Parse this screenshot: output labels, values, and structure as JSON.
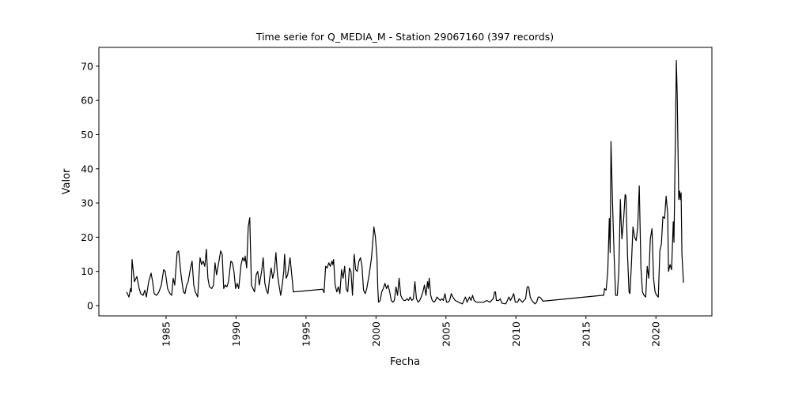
{
  "chart_data": {
    "type": "line",
    "title": "Time serie for Q_MEDIA_M - Station 29067160 (397 records)",
    "xlabel": "Fecha",
    "ylabel": "Valor",
    "color": "#000000",
    "x": [
      1982.18,
      1982.35,
      1982.46,
      1982.52,
      1982.57,
      1982.74,
      1982.91,
      1983.08,
      1983.19,
      1983.36,
      1983.48,
      1983.59,
      1983.76,
      1983.93,
      1984.04,
      1984.15,
      1984.32,
      1984.49,
      1984.66,
      1984.83,
      1984.94,
      1985.11,
      1985.28,
      1985.4,
      1985.51,
      1985.62,
      1985.79,
      1985.9,
      1986.07,
      1986.24,
      1986.35,
      1986.47,
      1986.58,
      1986.75,
      1986.86,
      1986.98,
      1987.09,
      1987.26,
      1987.43,
      1987.54,
      1987.65,
      1987.77,
      1987.88,
      1987.99,
      1988.1,
      1988.27,
      1988.39,
      1988.5,
      1988.61,
      1988.78,
      1988.9,
      1989.01,
      1989.12,
      1989.23,
      1989.35,
      1989.46,
      1989.63,
      1989.74,
      1989.85,
      1989.97,
      1990.08,
      1990.19,
      1990.36,
      1990.48,
      1990.59,
      1990.65,
      1990.76,
      1990.87,
      1990.98,
      1991.1,
      1991.21,
      1991.32,
      1991.44,
      1991.55,
      1991.66,
      1991.83,
      1991.94,
      1992.06,
      1992.17,
      1992.28,
      1992.4,
      1992.51,
      1992.62,
      1992.73,
      1992.85,
      1992.96,
      1993.07,
      1993.19,
      1993.3,
      1993.41,
      1993.47,
      1993.58,
      1993.69,
      1993.86,
      1994.03,
      1994.09,
      1996.18,
      1996.29,
      1996.4,
      1996.51,
      1996.63,
      1996.74,
      1996.85,
      1996.91,
      1996.97,
      1997.08,
      1997.2,
      1997.31,
      1997.42,
      1997.54,
      1997.65,
      1997.76,
      1997.87,
      1997.98,
      1998.1,
      1998.21,
      1998.32,
      1998.44,
      1998.55,
      1998.66,
      1998.78,
      1998.89,
      1999.0,
      1999.11,
      1999.23,
      1999.34,
      1999.51,
      1999.68,
      1999.85,
      1999.96,
      2000.07,
      2000.13,
      2000.18,
      2000.3,
      2000.41,
      2000.52,
      2000.64,
      2000.75,
      2000.86,
      2000.98,
      2001.09,
      2001.2,
      2001.31,
      2001.43,
      2001.54,
      2001.65,
      2001.77,
      2001.88,
      2001.99,
      2002.1,
      2002.22,
      2002.33,
      2002.44,
      2002.56,
      2002.67,
      2002.78,
      2002.89,
      2003.01,
      2003.12,
      2003.23,
      2003.35,
      2003.46,
      2003.57,
      2003.68,
      2003.74,
      2003.8,
      2003.91,
      2004.02,
      2004.14,
      2004.25,
      2004.36,
      2004.47,
      2004.59,
      2004.7,
      2004.81,
      2004.93,
      2005.04,
      2005.15,
      2005.26,
      2005.38,
      2005.49,
      2005.66,
      2005.89,
      2006.17,
      2006.39,
      2006.51,
      2006.68,
      2006.79,
      2006.9,
      2007.01,
      2007.18,
      2007.41,
      2007.69,
      2007.92,
      2008.14,
      2008.37,
      2008.48,
      2008.54,
      2008.6,
      2008.77,
      2008.88,
      2008.99,
      2009.27,
      2009.5,
      2009.61,
      2009.73,
      2009.84,
      2009.95,
      2010.12,
      2010.23,
      2010.35,
      2010.46,
      2010.57,
      2010.69,
      2010.8,
      2010.91,
      2011.02,
      2011.14,
      2011.25,
      2011.36,
      2011.48,
      2011.59,
      2011.7,
      2011.81,
      2011.93,
      2016.16,
      2016.27,
      2016.33,
      2016.44,
      2016.56,
      2016.67,
      2016.73,
      2016.79,
      2016.9,
      2017.01,
      2017.12,
      2017.24,
      2017.35,
      2017.46,
      2017.52,
      2017.57,
      2017.69,
      2017.8,
      2017.86,
      2017.97,
      2018.08,
      2018.14,
      2018.25,
      2018.36,
      2018.48,
      2018.59,
      2018.7,
      2018.81,
      2018.93,
      2019.04,
      2019.15,
      2019.27,
      2019.38,
      2019.49,
      2019.6,
      2019.72,
      2019.83,
      2019.94,
      2020.05,
      2020.17,
      2020.28,
      2020.39,
      2020.5,
      2020.62,
      2020.73,
      2020.84,
      2020.9,
      2021.01,
      2021.12,
      2021.24,
      2021.29,
      2021.41,
      2021.46,
      2021.52,
      2021.58,
      2021.63,
      2021.69,
      2021.75,
      2021.8,
      2021.86,
      2021.97
    ],
    "values": [
      4,
      2.5,
      5,
      4,
      13.5,
      7,
      8.5,
      5,
      3.5,
      3,
      4.5,
      2.5,
      7,
      9.5,
      7,
      3.5,
      3,
      4,
      6,
      10.5,
      10,
      5,
      3.5,
      3,
      8,
      6,
      15.5,
      16,
      9,
      4,
      3.5,
      6,
      7,
      11,
      13,
      6,
      4,
      2.5,
      14,
      12,
      13,
      11.5,
      16.5,
      8,
      5.5,
      5,
      6,
      12.5,
      9,
      13,
      16,
      15,
      5,
      6,
      5.5,
      7,
      13,
      12.5,
      10,
      5,
      6.5,
      5,
      12,
      14,
      13,
      14.5,
      11,
      23,
      25.7,
      6,
      5,
      4,
      9,
      10,
      6,
      10,
      14,
      6.5,
      4.5,
      3.5,
      8,
      11,
      8,
      10,
      15.5,
      9,
      6,
      3,
      6,
      10,
      15,
      8,
      9,
      14,
      7,
      4,
      4.8,
      3.8,
      11.5,
      11,
      12.5,
      11.5,
      13,
      12,
      13.5,
      6,
      4,
      5.5,
      3.5,
      10.5,
      8,
      11.5,
      5,
      4,
      11,
      10,
      3,
      15,
      10.5,
      10,
      13,
      14,
      11.5,
      4.5,
      3.5,
      5,
      9,
      14,
      23,
      20,
      14,
      5,
      1,
      1.5,
      4,
      5,
      6.5,
      5,
      6,
      4,
      1.5,
      1,
      1.5,
      5.5,
      3,
      8,
      3,
      2,
      1.5,
      1.5,
      2,
      1.5,
      2.5,
      1.5,
      2,
      7,
      2,
      1,
      1.5,
      2.5,
      4,
      6,
      3,
      7,
      5,
      8,
      3,
      1.5,
      1,
      1.5,
      2.5,
      2,
      1.5,
      2,
      1.5,
      3.5,
      1,
      1,
      1.5,
      3.5,
      2.5,
      1.5,
      1,
      0.5,
      2.5,
      1,
      2.5,
      1.5,
      3,
      1.5,
      1,
      1,
      1,
      1.5,
      1,
      2,
      4,
      4,
      1.5,
      1.5,
      2,
      0.7,
      0.5,
      2.5,
      1.5,
      2.5,
      3.5,
      1,
      1,
      2,
      1.5,
      1,
      1.5,
      2,
      5.5,
      5.5,
      2.5,
      1.5,
      1,
      0.5,
      1,
      2.5,
      2.5,
      2,
      1.3,
      3,
      3,
      5,
      4.5,
      10,
      25.5,
      15.5,
      48,
      30,
      15,
      3,
      3,
      10,
      31,
      24,
      19.5,
      25,
      32.5,
      32,
      15,
      4,
      3.5,
      12,
      23,
      20,
      19,
      23,
      35,
      11,
      4,
      3,
      2.5,
      11.5,
      8,
      19.5,
      22.5,
      8,
      4,
      3,
      2.5,
      16,
      18,
      26,
      25.5,
      32,
      27,
      10,
      12,
      10.5,
      24.5,
      18.5,
      55,
      71.7,
      62,
      45,
      31,
      33.5,
      31,
      33,
      15,
      6.7
    ],
    "xlim": [
      1980.2,
      2024.0
    ],
    "xticks": [
      1985,
      1990,
      1995,
      2000,
      2005,
      2010,
      2015,
      2020
    ],
    "ylim": [
      -3.0,
      75.5
    ],
    "yticks": [
      0,
      10,
      20,
      30,
      40,
      50,
      60,
      70
    ]
  }
}
